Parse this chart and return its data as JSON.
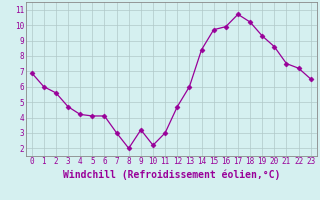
{
  "x": [
    0,
    1,
    2,
    3,
    4,
    5,
    6,
    7,
    8,
    9,
    10,
    11,
    12,
    13,
    14,
    15,
    16,
    17,
    18,
    19,
    20,
    21,
    22,
    23
  ],
  "y": [
    6.9,
    6.0,
    5.6,
    4.7,
    4.2,
    4.1,
    4.1,
    3.0,
    2.0,
    3.2,
    2.2,
    3.0,
    4.7,
    6.0,
    8.4,
    9.7,
    9.9,
    10.7,
    10.2,
    9.3,
    8.6,
    7.5,
    7.2,
    6.5
  ],
  "line_color": "#990099",
  "marker": "D",
  "marker_size": 2.5,
  "line_width": 0.9,
  "bg_color": "#d5f0f0",
  "grid_color": "#b0c8c8",
  "xlabel": "Windchill (Refroidissement éolien,°C)",
  "ylabel": "",
  "ylim": [
    1.5,
    11.5
  ],
  "xlim": [
    -0.5,
    23.5
  ],
  "yticks": [
    2,
    3,
    4,
    5,
    6,
    7,
    8,
    9,
    10,
    11
  ],
  "xticks": [
    0,
    1,
    2,
    3,
    4,
    5,
    6,
    7,
    8,
    9,
    10,
    11,
    12,
    13,
    14,
    15,
    16,
    17,
    18,
    19,
    20,
    21,
    22,
    23
  ],
  "tick_fontsize": 5.5,
  "xlabel_fontsize": 7.0,
  "spine_color": "#888888"
}
